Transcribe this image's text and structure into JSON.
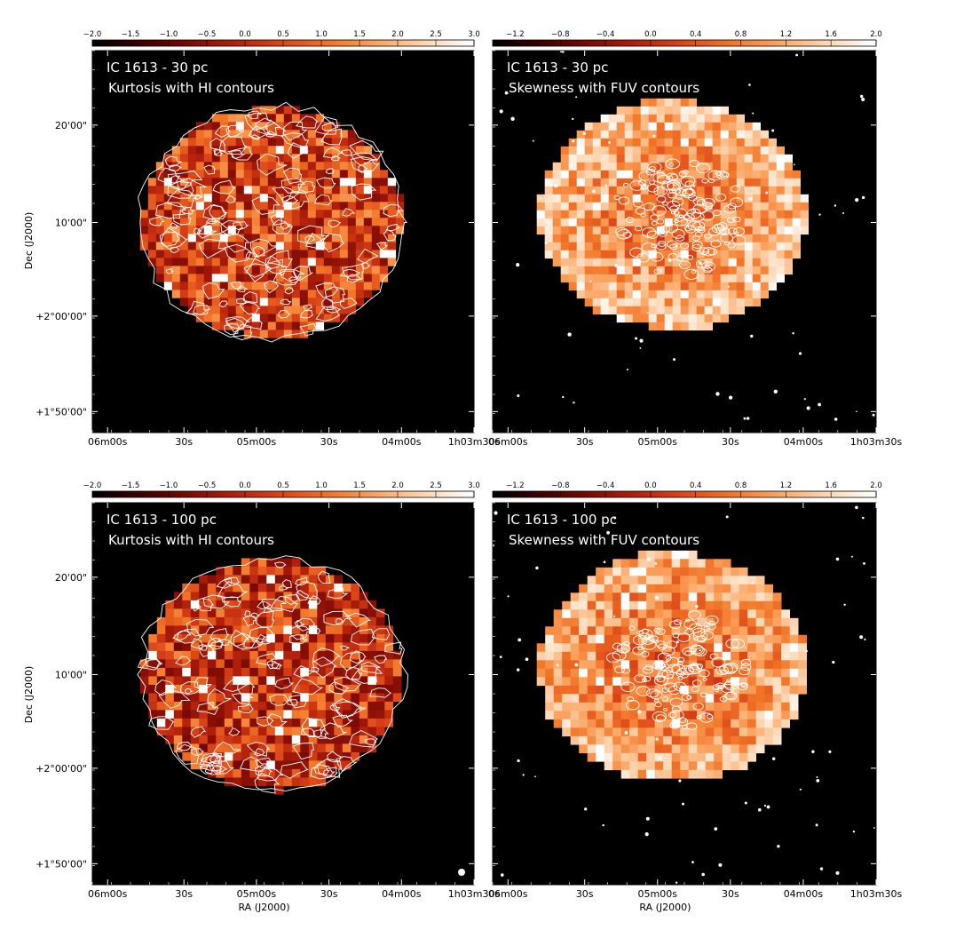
{
  "figure": {
    "axis_labels": {
      "dec": "Dec (J2000)",
      "ra": "RA (J2000)"
    }
  },
  "colors": {
    "colormap": [
      "#000000",
      "#3a0000",
      "#7a0a04",
      "#b3200c",
      "#dc4618",
      "#f27628",
      "#fba664",
      "#fdd7b4",
      "#ffffff"
    ],
    "contour_color": "#ffffff",
    "background": "#000000"
  },
  "chart_data": [
    {
      "type": "heatmap",
      "title": "IC 1613 - 30 pc",
      "subtitle": "Kurtosis with HI contours",
      "colorbar": {
        "range": [
          -2.0,
          3.0
        ],
        "ticks": [
          "−2.0",
          "−1.5",
          "−1.0",
          "−0.5",
          "0.0",
          "0.5",
          "1.0",
          "1.5",
          "2.0",
          "2.5",
          "3.0"
        ]
      },
      "xlabel": "",
      "ylabel": "Dec (J2000)",
      "xticks": [
        "06m00s",
        "30s",
        "05m00s",
        "30s",
        "04m00s",
        "1h03m30s"
      ],
      "yticks": [
        "20'00\"",
        "10'00\"",
        "+2°00'00\"",
        "+1°50'00\""
      ],
      "map": {
        "shape": "ellipse",
        "value_min": -2.0,
        "value_max": 3.0,
        "typical_value": 0.6,
        "contours": "HI"
      }
    },
    {
      "type": "heatmap",
      "title": "IC 1613 - 30 pc",
      "subtitle": "Skewness with FUV contours",
      "colorbar": {
        "range": [
          -1.4,
          2.0
        ],
        "ticks": [
          "−1.2",
          "−0.8",
          "−0.4",
          "0.0",
          "0.4",
          "0.8",
          "1.2",
          "1.6",
          "2.0"
        ]
      },
      "xlabel": "",
      "ylabel": "",
      "xticks": [
        "06m00s",
        "30s",
        "05m00s",
        "30s",
        "04m00s",
        "1h03m30s"
      ],
      "yticks": [],
      "map": {
        "shape": "ellipse",
        "value_min": -1.4,
        "value_max": 2.0,
        "typical_value": 1.0,
        "contours": "FUV"
      }
    },
    {
      "type": "heatmap",
      "title": "IC 1613 - 100 pc",
      "subtitle": "Kurtosis with HI contours",
      "colorbar": {
        "range": [
          -2.0,
          3.0
        ],
        "ticks": [
          "−2.0",
          "−1.5",
          "−1.0",
          "−0.5",
          "0.0",
          "0.5",
          "1.0",
          "1.5",
          "2.0",
          "2.5",
          "3.0"
        ]
      },
      "xlabel": "RA (J2000)",
      "ylabel": "Dec (J2000)",
      "xticks": [
        "06m00s",
        "30s",
        "05m00s",
        "30s",
        "04m00s",
        "1h03m30s"
      ],
      "yticks": [
        "20'00\"",
        "10'00\"",
        "+2°00'00\"",
        "+1°50'00\""
      ],
      "map": {
        "shape": "ellipse",
        "value_min": -2.0,
        "value_max": 3.0,
        "typical_value": 0.4,
        "contours": "HI"
      }
    },
    {
      "type": "heatmap",
      "title": "IC 1613 - 100 pc",
      "subtitle": "Skewness with FUV contours",
      "colorbar": {
        "range": [
          -1.4,
          2.0
        ],
        "ticks": [
          "−1.2",
          "−0.8",
          "−0.4",
          "0.0",
          "0.4",
          "0.8",
          "1.2",
          "1.6",
          "2.0"
        ]
      },
      "xlabel": "RA (J2000)",
      "ylabel": "",
      "xticks": [
        "06m00s",
        "30s",
        "05m00s",
        "30s",
        "04m00s",
        "1h03m30s"
      ],
      "yticks": [],
      "map": {
        "shape": "ellipse",
        "value_min": -1.4,
        "value_max": 2.0,
        "typical_value": 0.9,
        "contours": "FUV"
      }
    }
  ]
}
